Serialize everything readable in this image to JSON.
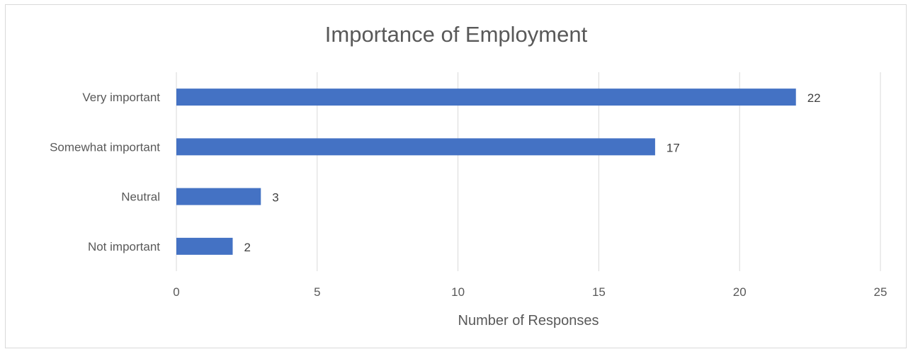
{
  "chart_data": {
    "type": "bar",
    "orientation": "horizontal",
    "title": "Importance of Employment",
    "xlabel": "Number of Responses",
    "ylabel": "",
    "categories": [
      "Very important",
      "Somewhat important",
      "Neutral",
      "Not important"
    ],
    "values": [
      22,
      17,
      3,
      2
    ],
    "xlim": [
      0,
      25
    ],
    "xticks": [
      0,
      5,
      10,
      15,
      20,
      25
    ],
    "grid": "vertical",
    "legend": "none",
    "data_labels": true,
    "bar_color": "#4472C4"
  }
}
